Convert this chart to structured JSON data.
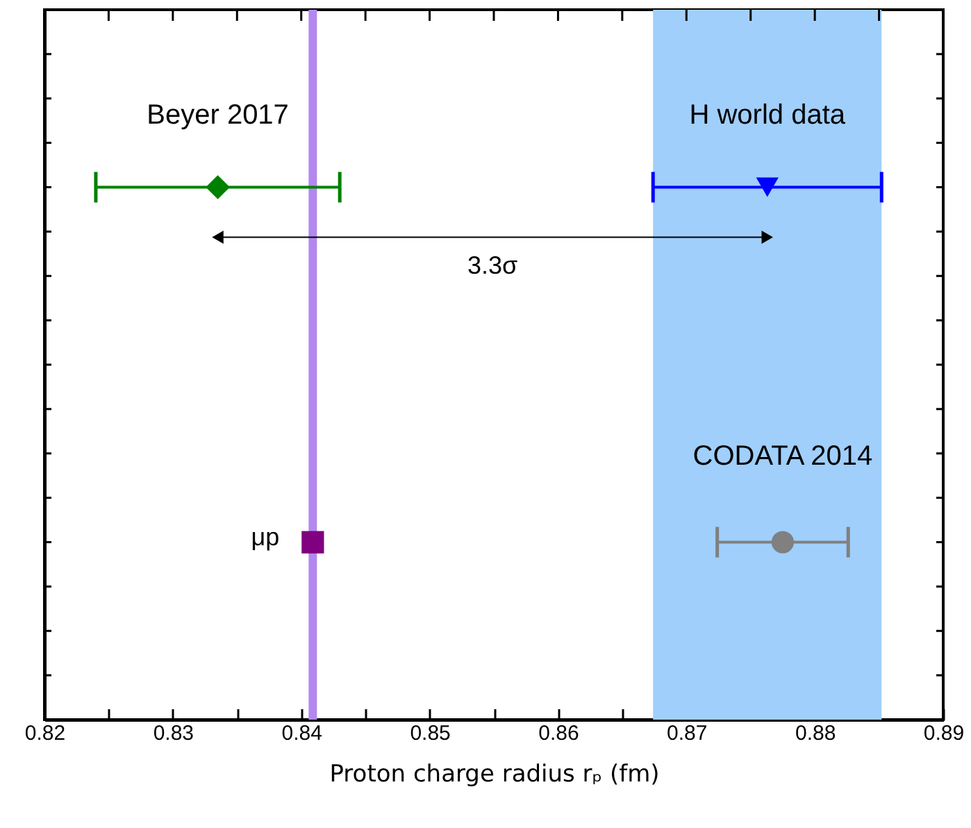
{
  "chart_data": {
    "type": "scatter",
    "orientation": "horizontal",
    "xlabel": "Proton charge radius rₚ (fm)",
    "categories": [
      null,
      null
    ],
    "xlim": [
      0.82,
      0.89
    ],
    "xticks": [
      0.82,
      {
        "value": 0.825,
        "label": null
      },
      0.83,
      {
        "value": 0.835,
        "label": null
      },
      0.84,
      {
        "value": 0.845,
        "label": null
      },
      0.85,
      {
        "value": 0.855,
        "label": null
      },
      0.86,
      {
        "value": 0.865,
        "label": null
      },
      0.87,
      {
        "value": 0.875,
        "label": null
      },
      0.88,
      {
        "value": 0.885,
        "label": null
      },
      0.89
    ],
    "grid": false,
    "series": [
      {
        "name": "Beyer 2017",
        "color": "#008000",
        "marker": "diamond",
        "values": [
          0.8335,
          null
        ],
        "errors": [
          0.0095,
          null
        ]
      },
      {
        "name": "H world data",
        "color": "#0000ff",
        "marker": "triangle",
        "values": [
          0.8763,
          null
        ],
        "errors": [
          0.0089,
          null
        ]
      },
      {
        "name": "μp",
        "color": "#800080",
        "marker": "square",
        "values": [
          null,
          0.8409
        ]
      },
      {
        "name": "CODATA 2014",
        "color": "#808080",
        "marker": "circle",
        "values": [
          null,
          0.8775
        ],
        "errors": [
          null,
          0.0051
        ]
      }
    ],
    "ref_lines": [
      {
        "axis": "x",
        "value": 0.8409,
        "color": "#b388ee"
      }
    ],
    "bands": [
      {
        "axis": "x",
        "from": 0.8674,
        "to": 0.8852,
        "color": "#a0cffc"
      }
    ],
    "annotations": [
      "3.3σ"
    ]
  }
}
